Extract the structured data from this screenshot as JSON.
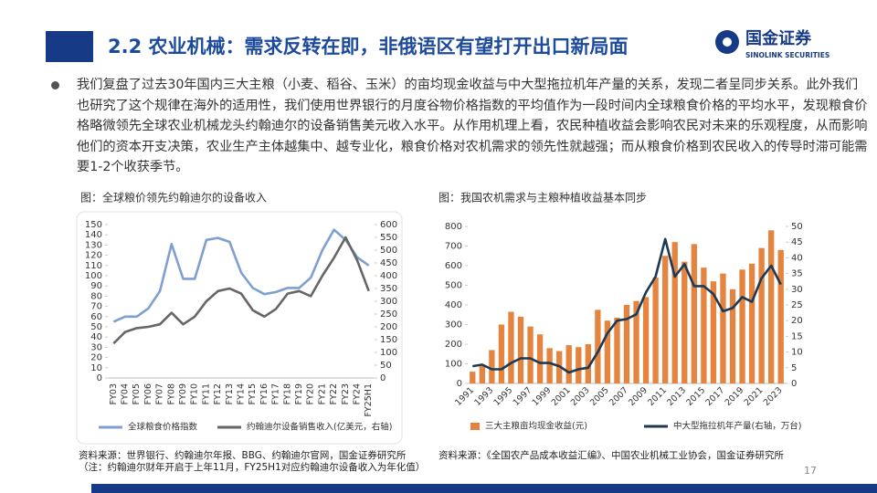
{
  "header": {
    "title": "2.2 农业机械：需求反转在即，非俄语区有望打开出口新局面",
    "logo_cn": "国金证券",
    "logo_en": "SINOLINK SECURITIES"
  },
  "body": "我们复盘了过去30年国内三大主粮（小麦、稻谷、玉米）的亩均现金收益与中大型拖拉机年产量的关系，发现二者呈同步关系。此外我们也研究了这个规律在海外的适用性，我们使用世界银行的月度谷物价格指数的平均值作为一段时间内全球粮食价格的平均水平，发现粮食价格略微领先全球农业机械龙头约翰迪尔的设备销售美元收入水平。从作用机理上看，农民种植收益会影响农民对未来的乐观程度，从而影响他们的资本开支决策，农业生产主体越集中、越专业化，粮食价格对农机需求的领先性就越强；而从粮食价格到农民收入的传导时滞可能需要1-2个收获季节。",
  "page_number": "17",
  "chart_data": [
    {
      "type": "line",
      "caption": "图：全球粮价领先约翰迪尔的设备收入",
      "source": "资料来源：世界银行、约翰迪尔年报、BBG、约翰迪尔官网，国金证券研究所（注：约翰迪尔财年开启于上年11月，FY25H1对应约翰迪尔设备收入为年化值）",
      "categories": [
        "FY03",
        "FY04",
        "FY05",
        "FY06",
        "FY07",
        "FY08",
        "FY09",
        "FY10",
        "FY11",
        "FY12",
        "FY13",
        "FY14",
        "FY15",
        "FY16",
        "FY17",
        "FY18",
        "FY19",
        "FY20",
        "FY21",
        "FY22",
        "FY23",
        "FY24",
        "FY25H1"
      ],
      "series": [
        {
          "name": "全球粮食价格指数",
          "color": "#7f9fd2",
          "values": [
            55,
            60,
            60,
            68,
            85,
            131,
            97,
            97,
            135,
            137,
            133,
            103,
            88,
            82,
            84,
            88,
            88,
            98,
            125,
            145,
            135,
            118,
            110
          ]
        },
        {
          "name": "约翰迪尔设备销售收入(亿美元，右轴)",
          "color": "#666666",
          "axis": "y2",
          "values": [
            135,
            180,
            195,
            200,
            210,
            255,
            210,
            240,
            300,
            340,
            350,
            330,
            265,
            240,
            270,
            330,
            340,
            320,
            400,
            470,
            550,
            460,
            340
          ]
        }
      ],
      "ylim": [
        0,
        150
      ],
      "yticks": [
        0,
        10,
        20,
        30,
        40,
        50,
        60,
        70,
        80,
        90,
        100,
        110,
        120,
        130,
        140,
        150
      ],
      "y2lim": [
        0,
        600
      ],
      "y2ticks": [
        0,
        50,
        100,
        150,
        200,
        250,
        300,
        350,
        400,
        450,
        500,
        550,
        600
      ]
    },
    {
      "type": "bar",
      "caption": "图：我国农机需求与主粮种植收益基本同步",
      "source": "资料来源：《全国农产品成本收益汇编》、中国农业机械工业协会，国金证券研究所",
      "categories": [
        "1991",
        null,
        "1993",
        null,
        "1995",
        null,
        "1997",
        null,
        "1999",
        null,
        "2001",
        null,
        "2003",
        null,
        "2005",
        null,
        "2007",
        null,
        "2009",
        null,
        "2011",
        null,
        "2013",
        null,
        "2015",
        null,
        "2017",
        null,
        "2019",
        null,
        "2021",
        null,
        "2023"
      ],
      "series": [
        {
          "name": "三大主粮亩均现金收益(元)",
          "color": "#e5843e",
          "type": "bar",
          "values": [
            60,
            90,
            170,
            300,
            365,
            340,
            290,
            250,
            180,
            165,
            195,
            185,
            200,
            375,
            320,
            335,
            400,
            420,
            440,
            540,
            650,
            720,
            620,
            710,
            590,
            520,
            560,
            480,
            580,
            610,
            690,
            780,
            680
          ]
        },
        {
          "name": "中大型拖拉机年产量(右轴，万台)",
          "color": "#1d3a55",
          "type": "line",
          "axis": "y2",
          "values": [
            5.5,
            6,
            4.5,
            4.5,
            6.5,
            8,
            8,
            6.5,
            6.5,
            5.5,
            3.5,
            4.5,
            5,
            10,
            16,
            20,
            20.5,
            22,
            29,
            34,
            46,
            34,
            38,
            31,
            31,
            28.5,
            23,
            24,
            27.5,
            26,
            33.5,
            37.5,
            31.5
          ]
        }
      ],
      "ylim": [
        0,
        800
      ],
      "yticks": [
        0,
        100,
        200,
        300,
        400,
        500,
        600,
        700,
        800
      ],
      "y2lim": [
        0,
        50
      ],
      "y2ticks": [
        0,
        5,
        10,
        15,
        20,
        25,
        30,
        35,
        40,
        45,
        50
      ]
    }
  ]
}
